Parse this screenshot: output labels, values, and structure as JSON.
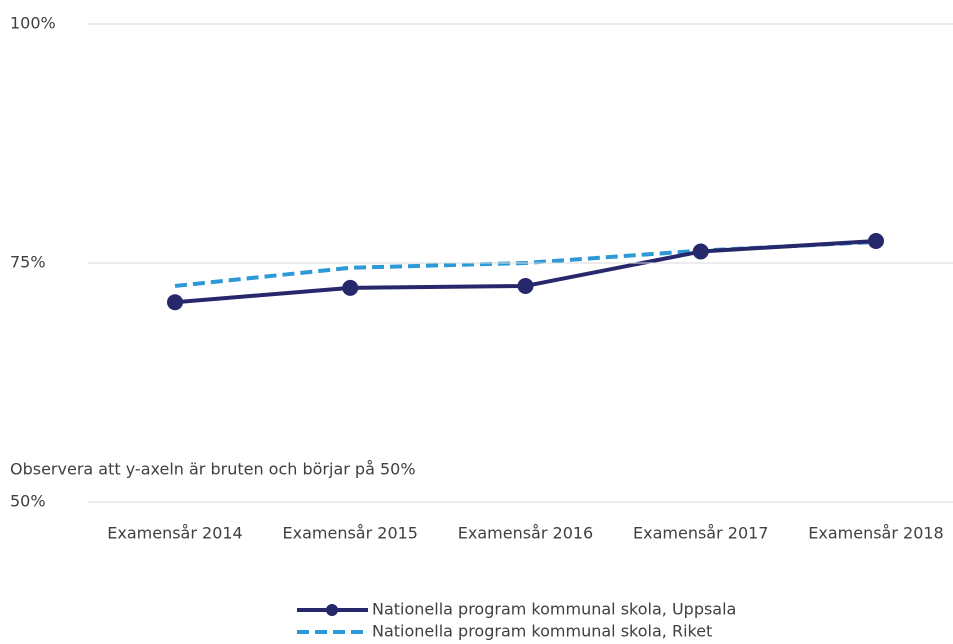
{
  "chart_data": {
    "type": "line",
    "categories": [
      "Examensår 2014",
      "Examensår 2015",
      "Examensår 2016",
      "Examensår 2017",
      "Examensår 2018"
    ],
    "series": [
      {
        "name": "Nationella program kommunal skola, Uppsala",
        "color": "#27276b",
        "values": [
          70.9,
          72.4,
          72.6,
          76.2,
          77.3
        ]
      },
      {
        "name": "Nationella program kommunal skola, Riket",
        "color": "#2c9ad6",
        "dashed": true,
        "values": [
          72.6,
          74.5,
          75.0,
          76.3,
          77.2
        ]
      }
    ],
    "ylim": [
      50,
      100
    ],
    "yticks": [
      {
        "value": 50,
        "label": "50%"
      },
      {
        "value": 75,
        "label": "75%"
      },
      {
        "value": 100,
        "label": "100%"
      }
    ],
    "grid": true,
    "legend": "bottom",
    "annotation": "Observera att y-axeln är bruten och börjar på 50%"
  }
}
